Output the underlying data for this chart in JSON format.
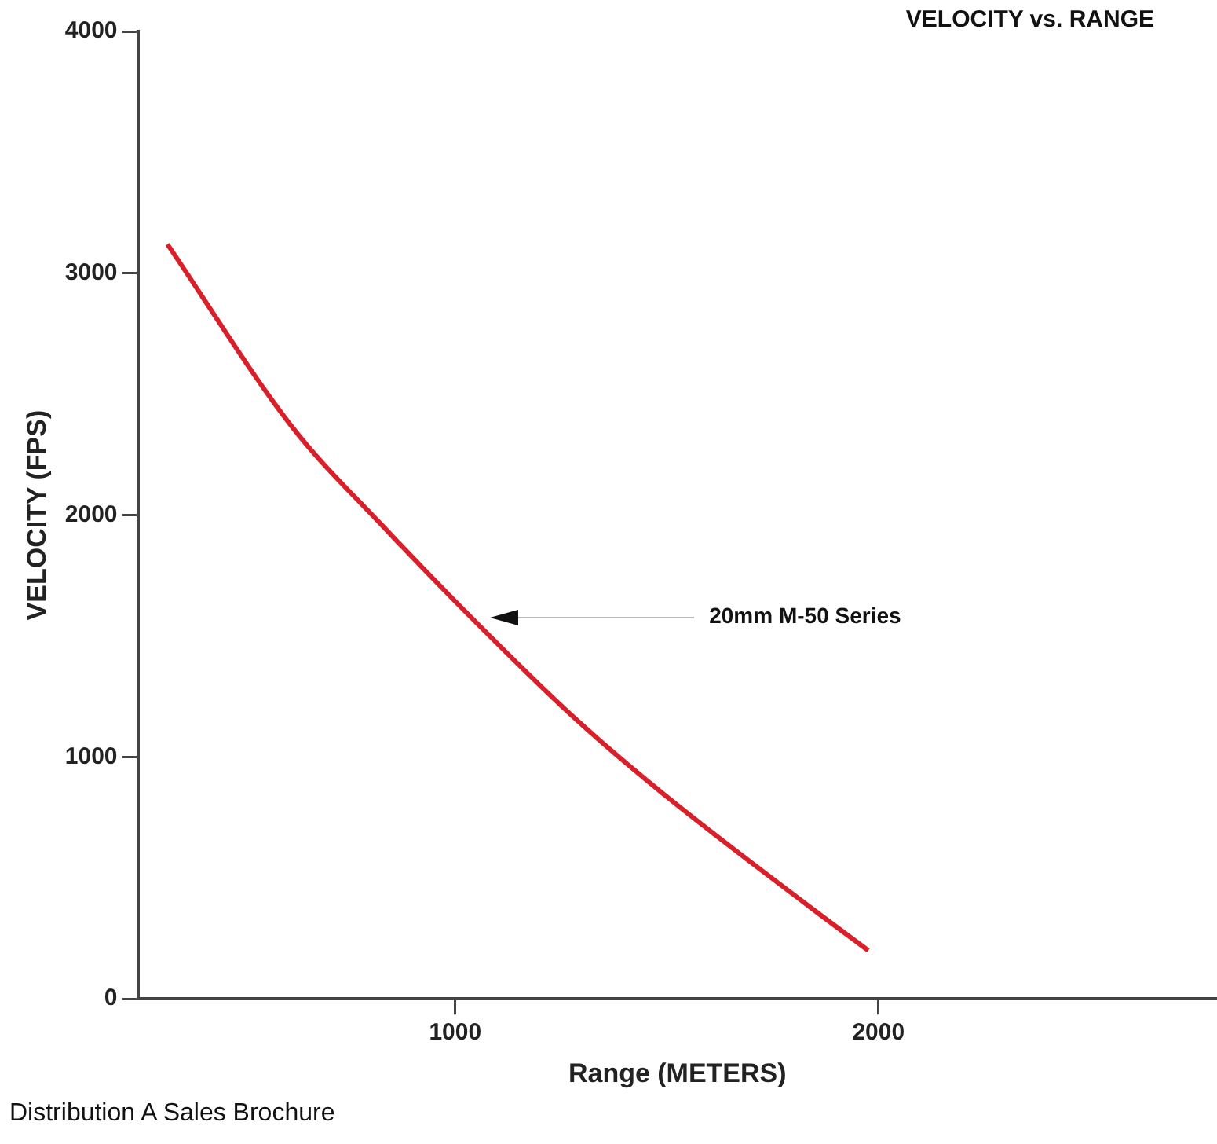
{
  "chart_data": {
    "type": "line",
    "title": "VELOCITY vs. RANGE",
    "xlabel": "Range (METERS)",
    "ylabel": "VELOCITY (FPS)",
    "x": [
      320,
      615,
      826,
      1036,
      1279,
      1490,
      1838,
      1976
    ],
    "series": [
      {
        "name": "20mm M-50 Series",
        "color": "#d9202a",
        "values": [
          3120,
          2364,
          1960,
          1580,
          1166,
          850,
          380,
          200
        ]
      }
    ],
    "xlim": [
      250,
      2800
    ],
    "xticks": [
      1000,
      2000
    ],
    "ylim": [
      0,
      4000
    ],
    "yticks": [
      0,
      1000,
      2000,
      3000,
      4000
    ],
    "grid": false,
    "legend": false,
    "marker": "none",
    "line_style": "solid",
    "annotations": [
      "Distribution A Sales Brochure"
    ]
  }
}
